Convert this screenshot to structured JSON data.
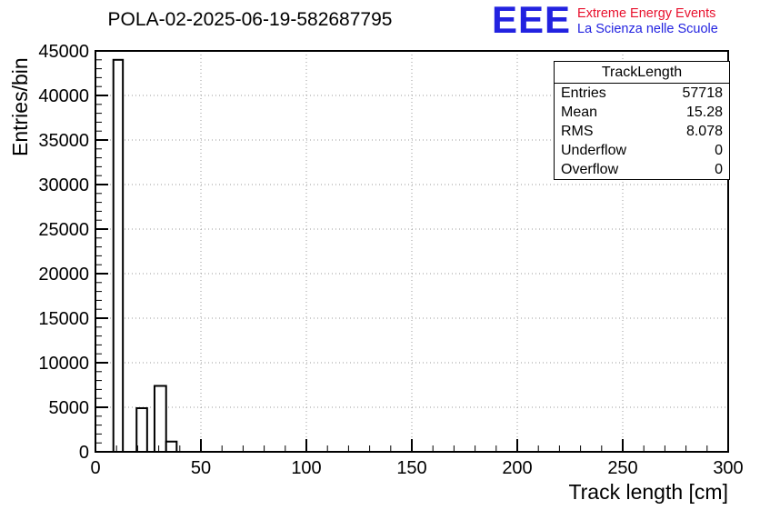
{
  "header": {
    "title": "POLA-02-2025-06-19-582687795"
  },
  "logo": {
    "text": "EEE",
    "line1": "Extreme Energy Events",
    "line2": "La Scienza nelle Scuole"
  },
  "theme": {
    "eee_blue": "#2222e0",
    "eee_red": "#e8112d",
    "grid_color": "#999999",
    "line_color": "#000000"
  },
  "stats": {
    "title": "TrackLength",
    "rows": [
      {
        "label": "Entries",
        "value": "57718"
      },
      {
        "label": "Mean",
        "value": "15.28"
      },
      {
        "label": "RMS",
        "value": "8.078"
      },
      {
        "label": "Underflow",
        "value": "0"
      },
      {
        "label": "Overflow",
        "value": "0"
      }
    ]
  },
  "chart_data": {
    "type": "bar",
    "title": "POLA-02-2025-06-19-582687795",
    "xlabel": "Track length [cm]",
    "ylabel": "Entries/bin",
    "xlim": [
      0,
      300
    ],
    "ylim": [
      0,
      45000
    ],
    "x_major_ticks": [
      0,
      50,
      100,
      150,
      200,
      250,
      300
    ],
    "y_major_ticks": [
      0,
      5000,
      10000,
      15000,
      20000,
      25000,
      30000,
      35000,
      40000,
      45000
    ],
    "x_minor_step": 10,
    "y_minor_step": 1000,
    "grid": true,
    "legend": false,
    "bars": [
      {
        "x0": 8.5,
        "x1": 13,
        "value": 44000
      },
      {
        "x0": 19.5,
        "x1": 24.5,
        "value": 4900
      },
      {
        "x0": 28,
        "x1": 33.5,
        "value": 7400
      },
      {
        "x0": 33.5,
        "x1": 38.5,
        "value": 1150
      }
    ]
  }
}
